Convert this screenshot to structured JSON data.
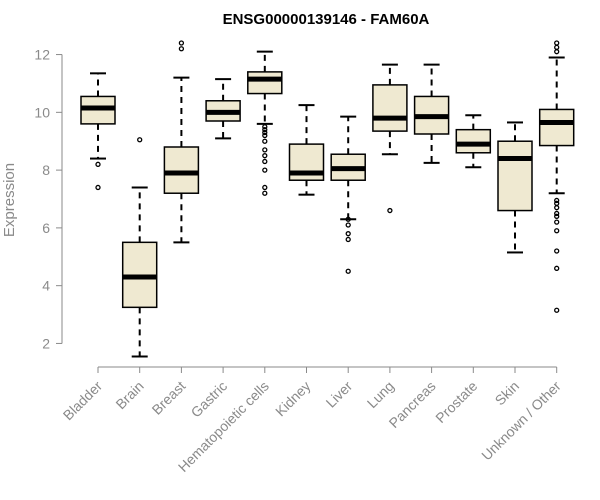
{
  "chart_data": {
    "type": "box",
    "title": "ENSG00000139146 - FAM60A",
    "xlabel": "",
    "ylabel": "Expression",
    "ylim": [
      1.6,
      12.4
    ],
    "yticks": [
      2,
      4,
      6,
      8,
      10,
      12
    ],
    "box_fill": "#efe9d1",
    "box_stroke": "#000000",
    "axis_color": "#8a8a8a",
    "grid": false,
    "categories": [
      "Bladder",
      "Brain",
      "Breast",
      "Gastric",
      "Hematopoietic cells",
      "Kidney",
      "Liver",
      "Lung",
      "Pancreas",
      "Prostate",
      "Skin",
      "Unknown / Other"
    ],
    "boxes": [
      {
        "whisker_low": 8.4,
        "q1": 9.6,
        "median": 10.15,
        "q3": 10.55,
        "whisker_high": 11.35,
        "outliers": [
          7.4,
          8.2
        ]
      },
      {
        "whisker_low": 1.55,
        "q1": 3.25,
        "median": 4.3,
        "q3": 5.5,
        "whisker_high": 7.4,
        "outliers": [
          9.05
        ]
      },
      {
        "whisker_low": 5.5,
        "q1": 7.2,
        "median": 7.9,
        "q3": 8.8,
        "whisker_high": 11.2,
        "outliers": [
          12.2,
          12.4
        ]
      },
      {
        "whisker_low": 9.1,
        "q1": 9.7,
        "median": 10.0,
        "q3": 10.4,
        "whisker_high": 11.15,
        "outliers": []
      },
      {
        "whisker_low": 9.6,
        "q1": 10.65,
        "median": 11.15,
        "q3": 11.4,
        "whisker_high": 12.1,
        "outliers": [
          7.2,
          7.4,
          8.0,
          8.3,
          8.5,
          8.7,
          9.0,
          9.2,
          9.3,
          9.4,
          9.5
        ]
      },
      {
        "whisker_low": 7.15,
        "q1": 7.65,
        "median": 7.9,
        "q3": 8.9,
        "whisker_high": 10.25,
        "outliers": []
      },
      {
        "whisker_low": 6.3,
        "q1": 7.65,
        "median": 8.05,
        "q3": 8.55,
        "whisker_high": 9.85,
        "outliers": [
          4.5,
          5.6,
          5.8,
          6.1,
          6.3
        ]
      },
      {
        "whisker_low": 8.55,
        "q1": 9.35,
        "median": 9.8,
        "q3": 10.95,
        "whisker_high": 11.65,
        "outliers": [
          6.6
        ]
      },
      {
        "whisker_low": 8.25,
        "q1": 9.25,
        "median": 9.85,
        "q3": 10.55,
        "whisker_high": 11.65,
        "outliers": []
      },
      {
        "whisker_low": 8.1,
        "q1": 8.6,
        "median": 8.9,
        "q3": 9.4,
        "whisker_high": 9.9,
        "outliers": []
      },
      {
        "whisker_low": 5.15,
        "q1": 6.6,
        "median": 8.4,
        "q3": 9.0,
        "whisker_high": 9.65,
        "outliers": []
      },
      {
        "whisker_low": 7.2,
        "q1": 8.85,
        "median": 9.65,
        "q3": 10.1,
        "whisker_high": 11.9,
        "outliers": [
          3.15,
          4.6,
          5.2,
          5.9,
          6.2,
          6.4,
          6.5,
          6.7,
          6.85,
          6.95,
          12.1,
          12.25,
          12.4
        ]
      }
    ]
  }
}
